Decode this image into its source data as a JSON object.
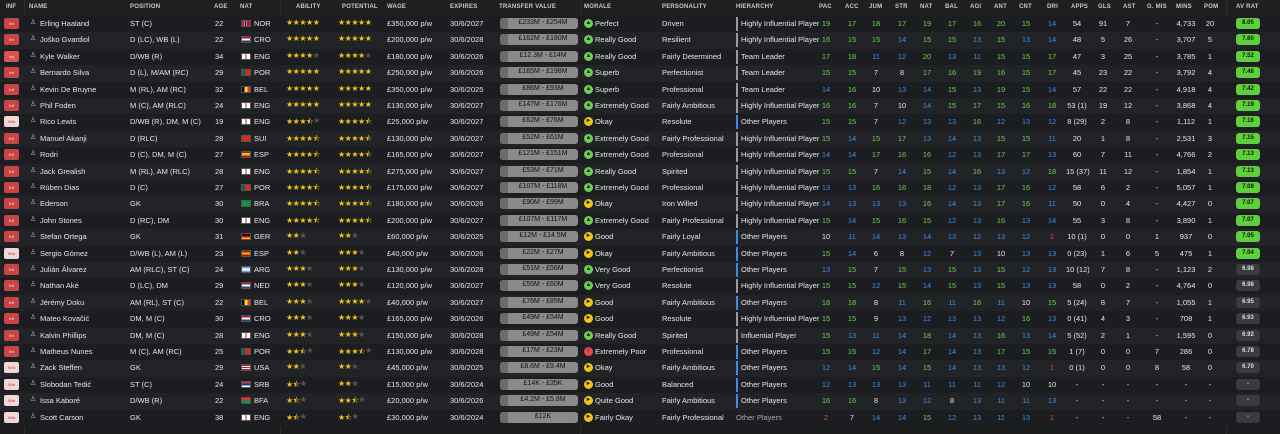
{
  "colors": {
    "green": "#6cd04f",
    "blue": "#3b8de0",
    "white": "#e6e6e6",
    "red": "#e04b4b",
    "yellow_bar": "#f0c419",
    "blue_bar": "#3b8de0",
    "grey_bar": "#9a9a9a",
    "avrat_green": "#5fcf3b",
    "avrat_grey": "#7a7a7a"
  },
  "headers": {
    "inf": "INF",
    "name": "NAME",
    "position": "POSITION",
    "age": "AGE",
    "nat": "NAT",
    "ability": "ABILITY",
    "potential": "POTENTIAL",
    "wage": "WAGE",
    "expires": "EXPIRES",
    "tv": "TRANSFER VALUE",
    "morale": "MORALE",
    "personality": "PERSONALITY",
    "hierarchy": "HIERARCHY",
    "pac": "PAC",
    "acc": "ACC",
    "jum": "JUM",
    "str": "STR",
    "nat2": "NAT",
    "bal": "BAL",
    "agi": "AGI",
    "ant": "ANT",
    "cnt": "CNT",
    "dri": "DRI",
    "apps": "APPS",
    "gls": "GLS",
    "ast": "AST",
    "gmis": "G. MIS",
    "mins": "MINS",
    "pom": "POM",
    "avrat": "AV RAT"
  },
  "players": [
    {
      "inf": "Inf",
      "name": "Erling Haaland",
      "pos": "ST (C)",
      "age": "22",
      "nat": "NOR",
      "flag": "nor",
      "ab": 5,
      "po": 5,
      "wage": "£350,000 p/w",
      "exp": "30/6/2027",
      "tv": "£233M - £254M",
      "mood": "g",
      "morale": "Perfect",
      "pers": "Driven",
      "hier": "Highly Influential Player",
      "hb": "y",
      "pac": "19",
      "acc": "17",
      "jum": "18",
      "str": "17",
      "nat2": "19",
      "bal": "17",
      "agi": "16",
      "ant": "20",
      "cnt": "15",
      "dri": "14",
      "apps": "54",
      "gls": "91",
      "ast": "7",
      "gmis": "-",
      "mins": "4,733",
      "pom": "20",
      "avr": "8.05",
      "avg": "g"
    },
    {
      "inf": "Inf",
      "name": "Joško Gvardiol",
      "pos": "D (LC), WB (L)",
      "age": "22",
      "nat": "CRO",
      "flag": "cro",
      "ab": 5,
      "po": 5,
      "wage": "£200,000 p/w",
      "exp": "30/6/2028",
      "tv": "£162M - £180M",
      "mood": "g",
      "morale": "Really Good",
      "pers": "Resilient",
      "hier": "Highly Influential Player",
      "hb": "y",
      "pac": "16",
      "acc": "15",
      "jum": "15",
      "str": "14",
      "nat2": "15",
      "bal": "15",
      "agi": "13",
      "ant": "15",
      "cnt": "13",
      "dri": "14",
      "apps": "48",
      "gls": "5",
      "ast": "26",
      "gmis": "-",
      "mins": "3,707",
      "pom": "5",
      "avr": "7.60",
      "avg": "g"
    },
    {
      "inf": "Inj",
      "name": "Kyle Walker",
      "pos": "D/WB (R)",
      "age": "34",
      "nat": "ENG",
      "flag": "eng",
      "ab": 4,
      "po": 4,
      "wage": "£180,000 p/w",
      "exp": "30/6/2026",
      "tv": "£12.3M - £14M",
      "mood": "g",
      "morale": "Really Good",
      "pers": "Fairly Determined",
      "hier": "Team Leader",
      "hb": "y",
      "pac": "17",
      "acc": "18",
      "jum": "11",
      "str": "12",
      "nat2": "20",
      "bal": "13",
      "agi": "11",
      "ant": "15",
      "cnt": "15",
      "dri": "17",
      "apps": "47",
      "gls": "3",
      "ast": "25",
      "gmis": "-",
      "mins": "3,785",
      "pom": "1",
      "avr": "7.52",
      "avg": "g"
    },
    {
      "inf": "Inf",
      "name": "Bernardo Silva",
      "pos": "D (L), M/AM (RC)",
      "age": "29",
      "nat": "POR",
      "flag": "por",
      "ab": 5,
      "po": 5,
      "wage": "£250,000 p/w",
      "exp": "30/6/2026",
      "tv": "£165M - £198M",
      "mood": "g",
      "morale": "Superb",
      "pers": "Perfectionist",
      "hier": "Team Leader",
      "hb": "y",
      "pac": "15",
      "acc": "15",
      "jum": "7",
      "str": "8",
      "nat2": "17",
      "bal": "16",
      "agi": "19",
      "ant": "16",
      "cnt": "15",
      "dri": "17",
      "apps": "45",
      "gls": "23",
      "ast": "22",
      "gmis": "-",
      "mins": "3,792",
      "pom": "4",
      "avr": "7.46",
      "avg": "g"
    },
    {
      "inf": "Inf",
      "name": "Kevin De Bruyne",
      "pos": "M (RL), AM (RC)",
      "age": "32",
      "nat": "BEL",
      "flag": "bel",
      "ab": 5,
      "po": 5,
      "wage": "£350,000 p/w",
      "exp": "30/6/2025",
      "tv": "£86M - £93M",
      "mood": "g",
      "morale": "Superb",
      "pers": "Professional",
      "hier": "Team Leader",
      "hb": "y",
      "pac": "14",
      "acc": "16",
      "jum": "10",
      "str": "13",
      "nat2": "14",
      "bal": "15",
      "agi": "13",
      "ant": "19",
      "cnt": "15",
      "dri": "14",
      "apps": "57",
      "gls": "22",
      "ast": "22",
      "gmis": "-",
      "mins": "4,918",
      "pom": "4",
      "avr": "7.42",
      "avg": "g"
    },
    {
      "inf": "Inf",
      "name": "Phil Foden",
      "pos": "M (C), AM (RLC)",
      "age": "24",
      "nat": "ENG",
      "flag": "eng",
      "ab": 5,
      "po": 5,
      "wage": "£130,000 p/w",
      "exp": "30/6/2027",
      "tv": "£147M - £176M",
      "mood": "g",
      "morale": "Extremely Good",
      "pers": "Fairly Ambitious",
      "hier": "Highly Influential Player",
      "hb": "y",
      "pac": "16",
      "acc": "16",
      "jum": "7",
      "str": "10",
      "nat2": "14",
      "bal": "15",
      "agi": "17",
      "ant": "15",
      "cnt": "16",
      "dri": "18",
      "apps": "53 (1)",
      "gls": "19",
      "ast": "12",
      "gmis": "-",
      "mins": "3,868",
      "pom": "4",
      "avr": "7.19",
      "avg": "g"
    },
    {
      "inf": "Wnt",
      "name": "Rico Lewis",
      "pos": "D/WB (R), DM, M (C)",
      "age": "19",
      "nat": "ENG",
      "flag": "eng",
      "ab": 3.5,
      "po": 4.5,
      "wage": "£25,000 p/w",
      "exp": "30/6/2027",
      "tv": "£62M - £76M",
      "mood": "y",
      "morale": "Okay",
      "pers": "Resolute",
      "hier": "Other Players",
      "hb": "b",
      "pac": "15",
      "acc": "15",
      "jum": "7",
      "str": "12",
      "nat2": "13",
      "bal": "13",
      "agi": "16",
      "ant": "12",
      "cnt": "13",
      "dri": "12",
      "apps": "8 (29)",
      "gls": "2",
      "ast": "8",
      "gmis": "-",
      "mins": "1,112",
      "pom": "1",
      "avr": "7.16",
      "avg": "g"
    },
    {
      "inf": "Inf",
      "name": "Manuel Akanji",
      "pos": "D (RLC)",
      "age": "28",
      "nat": "SUI",
      "flag": "sui",
      "ab": 4.5,
      "po": 4.5,
      "wage": "£130,000 p/w",
      "exp": "30/6/2027",
      "tv": "£52M - £61M",
      "mood": "g",
      "morale": "Extremely Good",
      "pers": "Fairly Professional",
      "hier": "Highly Influential Player",
      "hb": "y",
      "pac": "15",
      "acc": "14",
      "jum": "15",
      "str": "17",
      "nat2": "13",
      "bal": "14",
      "agi": "13",
      "ant": "15",
      "cnt": "15",
      "dri": "11",
      "apps": "20",
      "gls": "1",
      "ast": "8",
      "gmis": "-",
      "mins": "2,531",
      "pom": "3",
      "avr": "7.15",
      "avg": "g"
    },
    {
      "inf": "Inf",
      "name": "Rodri",
      "pos": "D (C), DM, M (C)",
      "age": "27",
      "nat": "ESP",
      "flag": "esp",
      "ab": 4.5,
      "po": 4.5,
      "wage": "£165,000 p/w",
      "exp": "30/6/2027",
      "tv": "£121M - £151M",
      "mood": "g",
      "morale": "Extremely Good",
      "pers": "Professional",
      "hier": "Highly Influential Player",
      "hb": "y",
      "pac": "14",
      "acc": "14",
      "jum": "17",
      "str": "16",
      "nat2": "16",
      "bal": "12",
      "agi": "13",
      "ant": "17",
      "cnt": "17",
      "dri": "13",
      "apps": "60",
      "gls": "7",
      "ast": "11",
      "gmis": "-",
      "mins": "4,766",
      "pom": "2",
      "avr": "7.13",
      "avg": "g"
    },
    {
      "inf": "Inf",
      "name": "Jack Grealish",
      "pos": "M (RL), AM (RLC)",
      "age": "28",
      "nat": "ENG",
      "flag": "eng",
      "ab": 4.5,
      "po": 4.5,
      "wage": "£275,000 p/w",
      "exp": "30/6/2027",
      "tv": "£53M - £71M",
      "mood": "g",
      "morale": "Really Good",
      "pers": "Spirited",
      "hier": "Highly Influential Player",
      "hb": "y",
      "pac": "15",
      "acc": "15",
      "jum": "7",
      "str": "14",
      "nat2": "15",
      "bal": "14",
      "agi": "16",
      "ant": "13",
      "cnt": "12",
      "dri": "18",
      "apps": "15 (37)",
      "gls": "11",
      "ast": "12",
      "gmis": "-",
      "mins": "1,854",
      "pom": "1",
      "avr": "7.13",
      "avg": "g"
    },
    {
      "inf": "Inf",
      "name": "Rúben Dias",
      "pos": "D (C)",
      "age": "27",
      "nat": "POR",
      "flag": "por",
      "ab": 4.5,
      "po": 4.5,
      "wage": "£175,000 p/w",
      "exp": "30/6/2027",
      "tv": "£107M - £118M",
      "mood": "g",
      "morale": "Extremely Good",
      "pers": "Professional",
      "hier": "Highly Influential Player",
      "hb": "y",
      "pac": "13",
      "acc": "13",
      "jum": "16",
      "str": "16",
      "nat2": "18",
      "bal": "12",
      "agi": "13",
      "ant": "17",
      "cnt": "16",
      "dri": "12",
      "apps": "58",
      "gls": "6",
      "ast": "2",
      "gmis": "-",
      "mins": "5,057",
      "pom": "1",
      "avr": "7.08",
      "avg": "g"
    },
    {
      "inf": "Inf",
      "name": "Ederson",
      "pos": "GK",
      "age": "30",
      "nat": "BRA",
      "flag": "bra",
      "ab": 4.5,
      "po": 4.5,
      "wage": "£180,000 p/w",
      "exp": "30/6/2026",
      "tv": "£90M - £99M",
      "mood": "y",
      "morale": "Okay",
      "pers": "Iron Willed",
      "hier": "Highly Influential Player",
      "hb": "y",
      "pac": "14",
      "acc": "13",
      "jum": "13",
      "str": "13",
      "nat2": "16",
      "bal": "14",
      "agi": "13",
      "ant": "17",
      "cnt": "16",
      "dri": "11",
      "apps": "50",
      "gls": "0",
      "ast": "4",
      "gmis": "-",
      "mins": "4,427",
      "pom": "0",
      "avr": "7.07",
      "avg": "g"
    },
    {
      "inf": "Inf",
      "name": "John Stones",
      "pos": "D (RC), DM",
      "age": "30",
      "nat": "ENG",
      "flag": "eng",
      "ab": 4.5,
      "po": 4.5,
      "wage": "£200,000 p/w",
      "exp": "30/6/2027",
      "tv": "£107M - £117M",
      "mood": "g",
      "morale": "Extremely Good",
      "pers": "Fairly Professional",
      "hier": "Highly Influential Player",
      "hb": "y",
      "pac": "15",
      "acc": "14",
      "jum": "15",
      "str": "16",
      "nat2": "15",
      "bal": "12",
      "agi": "13",
      "ant": "16",
      "cnt": "13",
      "dri": "14",
      "apps": "55",
      "gls": "3",
      "ast": "8",
      "gmis": "-",
      "mins": "3,890",
      "pom": "1",
      "avr": "7.07",
      "avg": "g"
    },
    {
      "inf": "Inf",
      "name": "Stefan Ortega",
      "pos": "GK",
      "age": "31",
      "nat": "GER",
      "flag": "ger",
      "ab": 2,
      "po": 2,
      "wage": "£60,000 p/w",
      "exp": "30/6/2025",
      "tv": "£12M - £14.5M",
      "mood": "y",
      "morale": "Good",
      "pers": "Fairly Loyal",
      "hier": "Other Players",
      "hb": "b",
      "pac": "10",
      "acc": "11",
      "jum": "14",
      "str": "13",
      "nat2": "14",
      "bal": "13",
      "agi": "12",
      "ant": "13",
      "cnt": "12",
      "dri": "1",
      "apps": "10 (1)",
      "gls": "0",
      "ast": "0",
      "gmis": "1",
      "mins": "937",
      "pom": "0",
      "avr": "7.05",
      "avg": "g"
    },
    {
      "inf": "Wnt",
      "name": "Sergio Gómez",
      "pos": "D/WB (L), AM (L)",
      "age": "23",
      "nat": "ESP",
      "flag": "esp",
      "ab": 2,
      "po": 3,
      "wage": "£40,000 p/w",
      "exp": "30/6/2026",
      "tv": "£22M - £27M",
      "mood": "y",
      "morale": "Okay",
      "pers": "Fairly Ambitious",
      "hier": "Other Players",
      "hb": "b",
      "pac": "15",
      "acc": "14",
      "jum": "6",
      "str": "8",
      "nat2": "12",
      "bal": "7",
      "agi": "13",
      "ant": "10",
      "cnt": "13",
      "dri": "13",
      "apps": "0 (23)",
      "gls": "1",
      "ast": "6",
      "gmis": "5",
      "mins": "475",
      "pom": "1",
      "avr": "7.04",
      "avg": "g"
    },
    {
      "inf": "Inf",
      "name": "Julián Álvarez",
      "pos": "AM (RLC), ST (C)",
      "age": "24",
      "nat": "ARG",
      "flag": "arg",
      "ab": 3,
      "po": 3,
      "wage": "£130,000 p/w",
      "exp": "30/6/2028",
      "tv": "£51M - £56M",
      "mood": "g",
      "morale": "Very Good",
      "pers": "Perfectionist",
      "hier": "Other Players",
      "hb": "b",
      "pac": "13",
      "acc": "15",
      "jum": "7",
      "str": "15",
      "nat2": "13",
      "bal": "15",
      "agi": "13",
      "ant": "15",
      "cnt": "12",
      "dri": "13",
      "apps": "10 (12)",
      "gls": "7",
      "ast": "8",
      "gmis": "-",
      "mins": "1,123",
      "pom": "2",
      "avr": "6.98",
      "avg": "x"
    },
    {
      "inf": "Inf",
      "name": "Nathan Aké",
      "pos": "D (LC), DM",
      "age": "29",
      "nat": "NED",
      "flag": "ned",
      "ab": 3,
      "po": 3,
      "wage": "£120,000 p/w",
      "exp": "30/6/2027",
      "tv": "£55M - £60M",
      "mood": "g",
      "morale": "Very Good",
      "pers": "Resolute",
      "hier": "Highly Influential Player",
      "hb": "y",
      "pac": "15",
      "acc": "15",
      "jum": "12",
      "str": "15",
      "nat2": "14",
      "bal": "15",
      "agi": "13",
      "ant": "15",
      "cnt": "13",
      "dri": "13",
      "apps": "58",
      "gls": "0",
      "ast": "2",
      "gmis": "-",
      "mins": "4,764",
      "pom": "0",
      "avr": "6.98",
      "avg": "x"
    },
    {
      "inf": "Inf",
      "name": "Jérémy Doku",
      "pos": "AM (RL), ST (C)",
      "age": "22",
      "nat": "BEL",
      "flag": "bel",
      "ab": 3,
      "po": 4,
      "wage": "£40,000 p/w",
      "exp": "30/6/2027",
      "tv": "£76M - £85M",
      "mood": "y",
      "morale": "Good",
      "pers": "Fairly Ambitious",
      "hier": "Other Players",
      "hb": "b",
      "pac": "18",
      "acc": "18",
      "jum": "8",
      "str": "11",
      "nat2": "16",
      "bal": "11",
      "agi": "16",
      "ant": "11",
      "cnt": "10",
      "dri": "15",
      "apps": "5 (24)",
      "gls": "8",
      "ast": "7",
      "gmis": "-",
      "mins": "1,055",
      "pom": "1",
      "avr": "6.95",
      "avg": "x"
    },
    {
      "inf": "Inf",
      "name": "Mateo Kovačić",
      "pos": "DM, M (C)",
      "age": "30",
      "nat": "CRO",
      "flag": "cro",
      "ab": 3,
      "po": 3,
      "wage": "£165,000 p/w",
      "exp": "30/6/2026",
      "tv": "£49M - £54M",
      "mood": "y",
      "morale": "Good",
      "pers": "Resolute",
      "hier": "Highly Influential Player",
      "hb": "y",
      "pac": "15",
      "acc": "15",
      "jum": "9",
      "str": "13",
      "nat2": "12",
      "bal": "13",
      "agi": "13",
      "ant": "12",
      "cnt": "16",
      "dri": "13",
      "apps": "0 (41)",
      "gls": "4",
      "ast": "3",
      "gmis": "-",
      "mins": "708",
      "pom": "1",
      "avr": "6.93",
      "avg": "x"
    },
    {
      "inf": "Inf",
      "name": "Kalvin Phillips",
      "pos": "DM, M (C)",
      "age": "28",
      "nat": "ENG",
      "flag": "eng",
      "ab": 3,
      "po": 3,
      "wage": "£150,000 p/w",
      "exp": "30/6/2028",
      "tv": "£49M - £54M",
      "mood": "g",
      "morale": "Really Good",
      "pers": "Spirited",
      "hier": "Influential Player",
      "hb": "y",
      "pac": "15",
      "acc": "13",
      "jum": "11",
      "str": "14",
      "nat2": "18",
      "bal": "14",
      "agi": "13",
      "ant": "16",
      "cnt": "13",
      "dri": "14",
      "apps": "5 (52)",
      "gls": "2",
      "ast": "1",
      "gmis": "-",
      "mins": "1,595",
      "pom": "0",
      "avr": "6.92",
      "avg": "x"
    },
    {
      "inf": "Inf",
      "name": "Matheus Nunes",
      "pos": "M (C), AM (RC)",
      "age": "25",
      "nat": "POR",
      "flag": "por",
      "ab": 2.5,
      "po": 3.5,
      "wage": "£130,000 p/w",
      "exp": "30/6/2028",
      "tv": "£17M - £23M",
      "mood": "r",
      "morale": "Extremely Poor",
      "pers": "Professional",
      "hier": "Other Players",
      "hb": "b",
      "pac": "15",
      "acc": "15",
      "jum": "12",
      "str": "14",
      "nat2": "17",
      "bal": "14",
      "agi": "13",
      "ant": "17",
      "cnt": "15",
      "dri": "15",
      "apps": "1 (7)",
      "gls": "0",
      "ast": "0",
      "gmis": "7",
      "mins": "286",
      "pom": "0",
      "avr": "6.78",
      "avg": "x"
    },
    {
      "inf": "Wnt",
      "name": "Zack Steffen",
      "pos": "GK",
      "age": "29",
      "nat": "USA",
      "flag": "usa",
      "ab": 2,
      "po": 2,
      "wage": "£45,000 p/w",
      "exp": "30/6/2025",
      "tv": "£8.6M - £9.4M",
      "mood": "y",
      "morale": "Okay",
      "pers": "Fairly Ambitious",
      "hier": "Other Players",
      "hb": "b",
      "pac": "12",
      "acc": "14",
      "jum": "15",
      "str": "14",
      "nat2": "15",
      "bal": "14",
      "agi": "13",
      "ant": "13",
      "cnt": "12",
      "dri": "1",
      "apps": "0 (1)",
      "gls": "0",
      "ast": "0",
      "gmis": "8",
      "mins": "58",
      "pom": "0",
      "avr": "6.70",
      "avg": "x"
    },
    {
      "inf": "Wnt",
      "name": "Slobodan Tedić",
      "pos": "ST (C)",
      "age": "24",
      "nat": "SRB",
      "flag": "srb",
      "ab": 1.5,
      "po": 2,
      "wage": "£15,000 p/w",
      "exp": "30/6/2024",
      "tv": "£14K - £35K",
      "mood": "y",
      "morale": "Good",
      "pers": "Balanced",
      "hier": "Other Players",
      "hb": "b",
      "pac": "12",
      "acc": "13",
      "jum": "13",
      "str": "13",
      "nat2": "11",
      "bal": "11",
      "agi": "11",
      "ant": "12",
      "cnt": "10",
      "dri": "10",
      "apps": "-",
      "gls": "-",
      "ast": "-",
      "gmis": "-",
      "mins": "-",
      "pom": "-",
      "avr": "-",
      "avg": "x"
    },
    {
      "inf": "Wnt",
      "name": "Issa Kaboré",
      "pos": "D/WB (R)",
      "age": "22",
      "nat": "BFA",
      "flag": "bfa",
      "ab": 1.5,
      "po": 2.5,
      "wage": "£20,000 p/w",
      "exp": "30/6/2026",
      "tv": "£4.2M - £5.8M",
      "mood": "y",
      "morale": "Quite Good",
      "pers": "Fairly Ambitious",
      "hier": "Other Players",
      "hb": "b",
      "pac": "16",
      "acc": "16",
      "jum": "8",
      "str": "13",
      "nat2": "12",
      "bal": "8",
      "agi": "13",
      "ant": "11",
      "cnt": "11",
      "dri": "13",
      "apps": "-",
      "gls": "-",
      "ast": "-",
      "gmis": "-",
      "mins": "-",
      "pom": "-",
      "avr": "-",
      "avg": "x"
    },
    {
      "inf": "Wnt",
      "name": "Scott Carson",
      "pos": "GK",
      "age": "38",
      "nat": "ENG",
      "flag": "eng",
      "ab": 1.5,
      "po": 1.5,
      "wage": "£30,000 p/w",
      "exp": "30/6/2024",
      "tv": "£12K",
      "mood": "y",
      "morale": "Fairly Okay",
      "pers": "Fairly Professional",
      "hier": "Other Players",
      "hb": "n",
      "pac": "2",
      "acc": "7",
      "jum": "14",
      "str": "14",
      "nat2": "15",
      "bal": "12",
      "agi": "13",
      "ant": "11",
      "cnt": "13",
      "dri": "1",
      "apps": "-",
      "gls": "-",
      "ast": "-",
      "gmis": "58",
      "mins": "-",
      "pom": "-",
      "avr": "-",
      "avg": "x"
    }
  ]
}
